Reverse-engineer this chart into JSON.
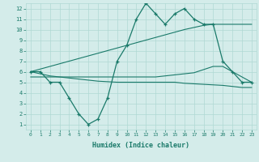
{
  "x": [
    0,
    1,
    2,
    3,
    4,
    5,
    6,
    7,
    8,
    9,
    10,
    11,
    12,
    13,
    14,
    15,
    16,
    17,
    18,
    19,
    20,
    21,
    22,
    23
  ],
  "line_main": [
    6.0,
    6.0,
    5.0,
    5.0,
    3.5,
    2.0,
    1.0,
    1.5,
    3.5,
    7.0,
    8.5,
    11.0,
    12.5,
    11.5,
    10.5,
    11.5,
    12.0,
    11.0,
    10.5,
    10.5,
    7.0,
    6.0,
    5.0,
    5.0
  ],
  "line_upper": [
    6.0,
    6.25,
    6.5,
    6.75,
    7.0,
    7.25,
    7.5,
    7.75,
    8.0,
    8.25,
    8.5,
    8.75,
    9.0,
    9.25,
    9.5,
    9.75,
    10.0,
    10.2,
    10.4,
    10.5,
    10.5,
    10.5,
    10.5,
    10.5
  ],
  "line_lower": [
    6.0,
    5.8,
    5.6,
    5.5,
    5.4,
    5.3,
    5.2,
    5.1,
    5.05,
    5.0,
    5.0,
    5.0,
    5.0,
    5.0,
    5.0,
    5.0,
    4.9,
    4.85,
    4.8,
    4.75,
    4.7,
    4.6,
    4.5,
    4.5
  ],
  "line_mid": [
    5.5,
    5.5,
    5.5,
    5.5,
    5.5,
    5.5,
    5.5,
    5.5,
    5.5,
    5.5,
    5.5,
    5.5,
    5.5,
    5.5,
    5.6,
    5.7,
    5.8,
    5.9,
    6.2,
    6.5,
    6.5,
    6.0,
    5.5,
    5.0
  ],
  "color": "#1a7a6a",
  "bg_color": "#d4ecea",
  "grid_color": "#b0d8d4",
  "xlabel": "Humidex (Indice chaleur)",
  "ylim": [
    0.5,
    12.5
  ],
  "xlim": [
    -0.5,
    23.5
  ],
  "yticks": [
    1,
    2,
    3,
    4,
    5,
    6,
    7,
    8,
    9,
    10,
    11,
    12
  ],
  "xticks": [
    0,
    1,
    2,
    3,
    4,
    5,
    6,
    7,
    8,
    9,
    10,
    11,
    12,
    13,
    14,
    15,
    16,
    17,
    18,
    19,
    20,
    21,
    22,
    23
  ]
}
